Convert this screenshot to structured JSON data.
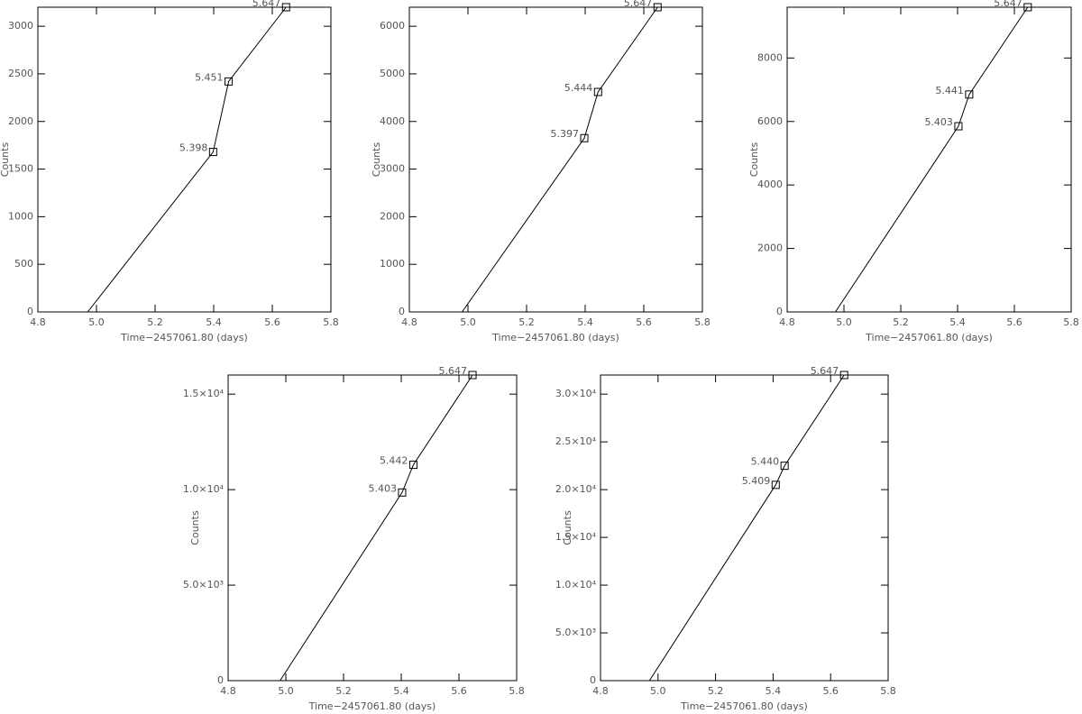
{
  "chart_data": [
    {
      "type": "line",
      "x_label": "Time−2457061.80 (days)",
      "y_label": "Counts",
      "color": "#000000",
      "marker": "square",
      "x": [
        4.97,
        5.398,
        5.451,
        5.647
      ],
      "values": [
        0,
        1680,
        2420,
        3200
      ],
      "marker_labels": [
        null,
        "5.398",
        "5.451",
        "5.647"
      ],
      "xlim": [
        4.8,
        5.8
      ],
      "xticks": [
        4.8,
        {
          "value": 5,
          "label": "5.0"
        },
        5.2,
        5.4,
        5.6,
        5.8
      ],
      "ylim": [
        0,
        3200
      ],
      "yticks": [
        0,
        500,
        1000,
        1500,
        2000,
        2500,
        3000
      ]
    },
    {
      "type": "line",
      "x_label": "Time−2457061.80 (days)",
      "y_label": "Counts",
      "color": "#000000",
      "marker": "square",
      "x": [
        4.98,
        5.397,
        5.444,
        5.647
      ],
      "values": [
        0,
        3650,
        4620,
        6400
      ],
      "marker_labels": [
        null,
        "5.397",
        "5.444",
        "5.647"
      ],
      "xlim": [
        4.8,
        5.8
      ],
      "xticks": [
        4.8,
        {
          "value": 5,
          "label": "5.0"
        },
        5.2,
        5.4,
        5.6,
        5.8
      ],
      "ylim": [
        0,
        6400
      ],
      "yticks": [
        0,
        1000,
        2000,
        3000,
        4000,
        5000,
        6000
      ]
    },
    {
      "type": "line",
      "x_label": "Time−2457061.80 (days)",
      "y_label": "Counts",
      "color": "#000000",
      "marker": "square",
      "x": [
        4.97,
        5.403,
        5.441,
        5.647
      ],
      "values": [
        0,
        5850,
        6850,
        9600
      ],
      "marker_labels": [
        null,
        "5.403",
        "5.441",
        "5.647"
      ],
      "xlim": [
        4.8,
        5.8
      ],
      "xticks": [
        4.8,
        {
          "value": 5,
          "label": "5.0"
        },
        5.2,
        5.4,
        5.6,
        5.8
      ],
      "ylim": [
        0,
        9600
      ],
      "yticks": [
        0,
        2000,
        4000,
        6000,
        8000
      ]
    },
    {
      "type": "line",
      "x_label": "Time−2457061.80 (days)",
      "y_label": "Counts",
      "color": "#000000",
      "marker": "square",
      "x": [
        4.98,
        5.403,
        5.442,
        5.647
      ],
      "values": [
        0,
        9850,
        11300,
        16000
      ],
      "marker_labels": [
        null,
        "5.403",
        "5.442",
        "5.647"
      ],
      "xlim": [
        4.8,
        5.8
      ],
      "xticks": [
        4.8,
        {
          "value": 5,
          "label": "5.0"
        },
        5.2,
        5.4,
        5.6,
        5.8
      ],
      "ylim": [
        0,
        16000
      ],
      "yticks": [
        0,
        {
          "value": 5000,
          "label": "5.0×10³"
        },
        {
          "value": 10000,
          "label": "1.0×10⁴"
        },
        {
          "value": 15000,
          "label": "1.5×10⁴"
        }
      ]
    },
    {
      "type": "line",
      "x_label": "Time−2457061.80 (days)",
      "y_label": "Counts",
      "color": "#000000",
      "marker": "square",
      "x": [
        4.97,
        5.409,
        5.44,
        5.647
      ],
      "values": [
        0,
        20500,
        22500,
        32000
      ],
      "marker_labels": [
        null,
        "5.409",
        "5.440",
        "5.647"
      ],
      "xlim": [
        4.8,
        5.8
      ],
      "xticks": [
        4.8,
        {
          "value": 5,
          "label": "5.0"
        },
        5.2,
        5.4,
        5.6,
        5.8
      ],
      "ylim": [
        0,
        32000
      ],
      "yticks": [
        0,
        {
          "value": 5000,
          "label": "5.0×10³"
        },
        {
          "value": 10000,
          "label": "1.0×10⁴"
        },
        {
          "value": 15000,
          "label": "1.5×10⁴"
        },
        {
          "value": 20000,
          "label": "2.0×10⁴"
        },
        {
          "value": 25000,
          "label": "2.5×10⁴"
        },
        {
          "value": 30000,
          "label": "3.0×10⁴"
        }
      ]
    }
  ]
}
